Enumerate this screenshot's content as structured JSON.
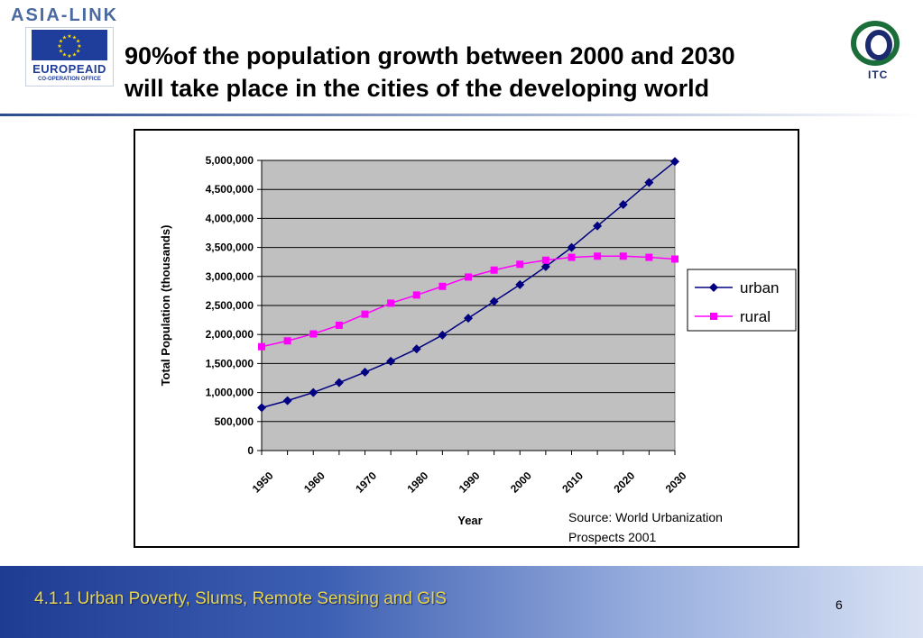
{
  "logos": {
    "asia_link": "ASIA-LINK",
    "europeaid": "EUROPEAID",
    "europeaid_sub": "CO-OPERATION OFFICE",
    "itc": "ITC"
  },
  "title": {
    "line1": "90%of the population growth between 2000 and 2030",
    "line2": "will take place in the cities of the developing world"
  },
  "colors": {
    "plot_bg": "#c0c0c0",
    "urban": "#000080",
    "rural": "#ff00ff",
    "footer_text": "#e6d44c"
  },
  "chart_data": {
    "type": "line",
    "title": "",
    "xlabel": "Year",
    "ylabel": "Total Population (thousands)",
    "ylim": [
      0,
      5000000
    ],
    "yticks": [
      "0",
      "500,000",
      "1,000,000",
      "1,500,000",
      "2,000,000",
      "2,500,000",
      "3,000,000",
      "3,500,000",
      "4,000,000",
      "4,500,000",
      "5,000,000"
    ],
    "xticks": [
      "1950",
      "1960",
      "1970",
      "1980",
      "1990",
      "2000",
      "2010",
      "2020",
      "2030"
    ],
    "x": [
      1950,
      1955,
      1960,
      1965,
      1970,
      1975,
      1980,
      1985,
      1990,
      1995,
      2000,
      2005,
      2010,
      2015,
      2020,
      2025,
      2030
    ],
    "series": [
      {
        "name": "urban",
        "marker": "diamond",
        "values": [
          740000,
          860000,
          1000000,
          1170000,
          1350000,
          1540000,
          1750000,
          1990000,
          2280000,
          2570000,
          2860000,
          3170000,
          3500000,
          3870000,
          4240000,
          4620000,
          4980000
        ]
      },
      {
        "name": "rural",
        "marker": "square",
        "values": [
          1790000,
          1890000,
          2010000,
          2160000,
          2350000,
          2540000,
          2680000,
          2830000,
          2990000,
          3110000,
          3210000,
          3280000,
          3330000,
          3350000,
          3350000,
          3330000,
          3300000
        ]
      }
    ],
    "legend": "right",
    "grid": true,
    "source": "Source: World Urbanization Prospects 2001"
  },
  "footer": {
    "course": "4.1.1 Urban Poverty, Slums, Remote Sensing and GIS",
    "page": "6"
  }
}
